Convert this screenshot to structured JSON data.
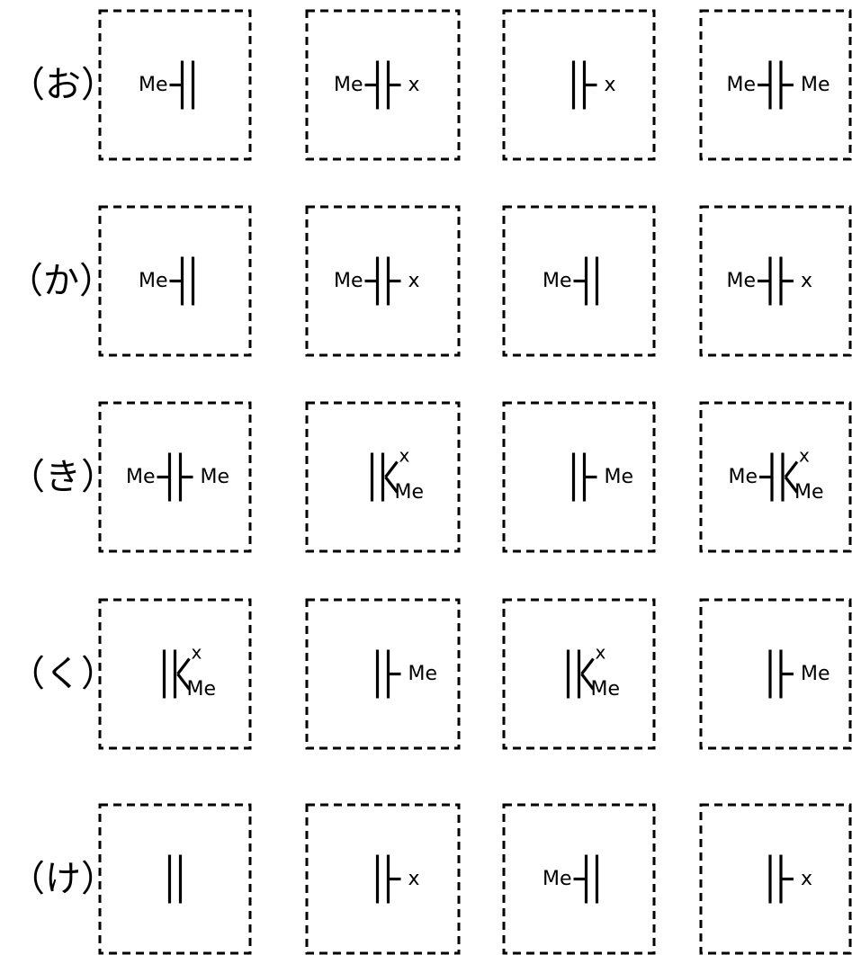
{
  "rows": [
    {
      "label": "（お）",
      "cells": [
        {
          "type": "L",
          "left": "Me"
        },
        {
          "type": "LR",
          "left": "Me",
          "right": "x"
        },
        {
          "type": "R",
          "right": "x"
        },
        {
          "type": "LR",
          "left": "Me",
          "right": "Me"
        }
      ]
    },
    {
      "label": "（か）",
      "cells": [
        {
          "type": "L",
          "left": "Me"
        },
        {
          "type": "LR",
          "left": "Me",
          "right": "x"
        },
        {
          "type": "L",
          "left": "Me"
        },
        {
          "type": "LR",
          "left": "Me",
          "right": "x"
        }
      ]
    },
    {
      "label": "（き）",
      "cells": [
        {
          "type": "LR",
          "left": "Me",
          "right": "Me"
        },
        {
          "type": "B",
          "top": "x",
          "bottom": "Me"
        },
        {
          "type": "R",
          "right": "Me"
        },
        {
          "type": "LB",
          "left": "Me",
          "top": "x",
          "bottom": "Me"
        }
      ]
    },
    {
      "label": "（く）",
      "cells": [
        {
          "type": "B",
          "top": "x",
          "bottom": "Me"
        },
        {
          "type": "R",
          "right": "Me"
        },
        {
          "type": "B",
          "top": "x",
          "bottom": "Me"
        },
        {
          "type": "R",
          "right": "Me"
        }
      ]
    },
    {
      "label": "（け）",
      "cells": [
        {
          "type": "N"
        },
        {
          "type": "R",
          "right": "x"
        },
        {
          "type": "L",
          "left": "Me"
        },
        {
          "type": "R",
          "right": "x"
        }
      ]
    }
  ]
}
